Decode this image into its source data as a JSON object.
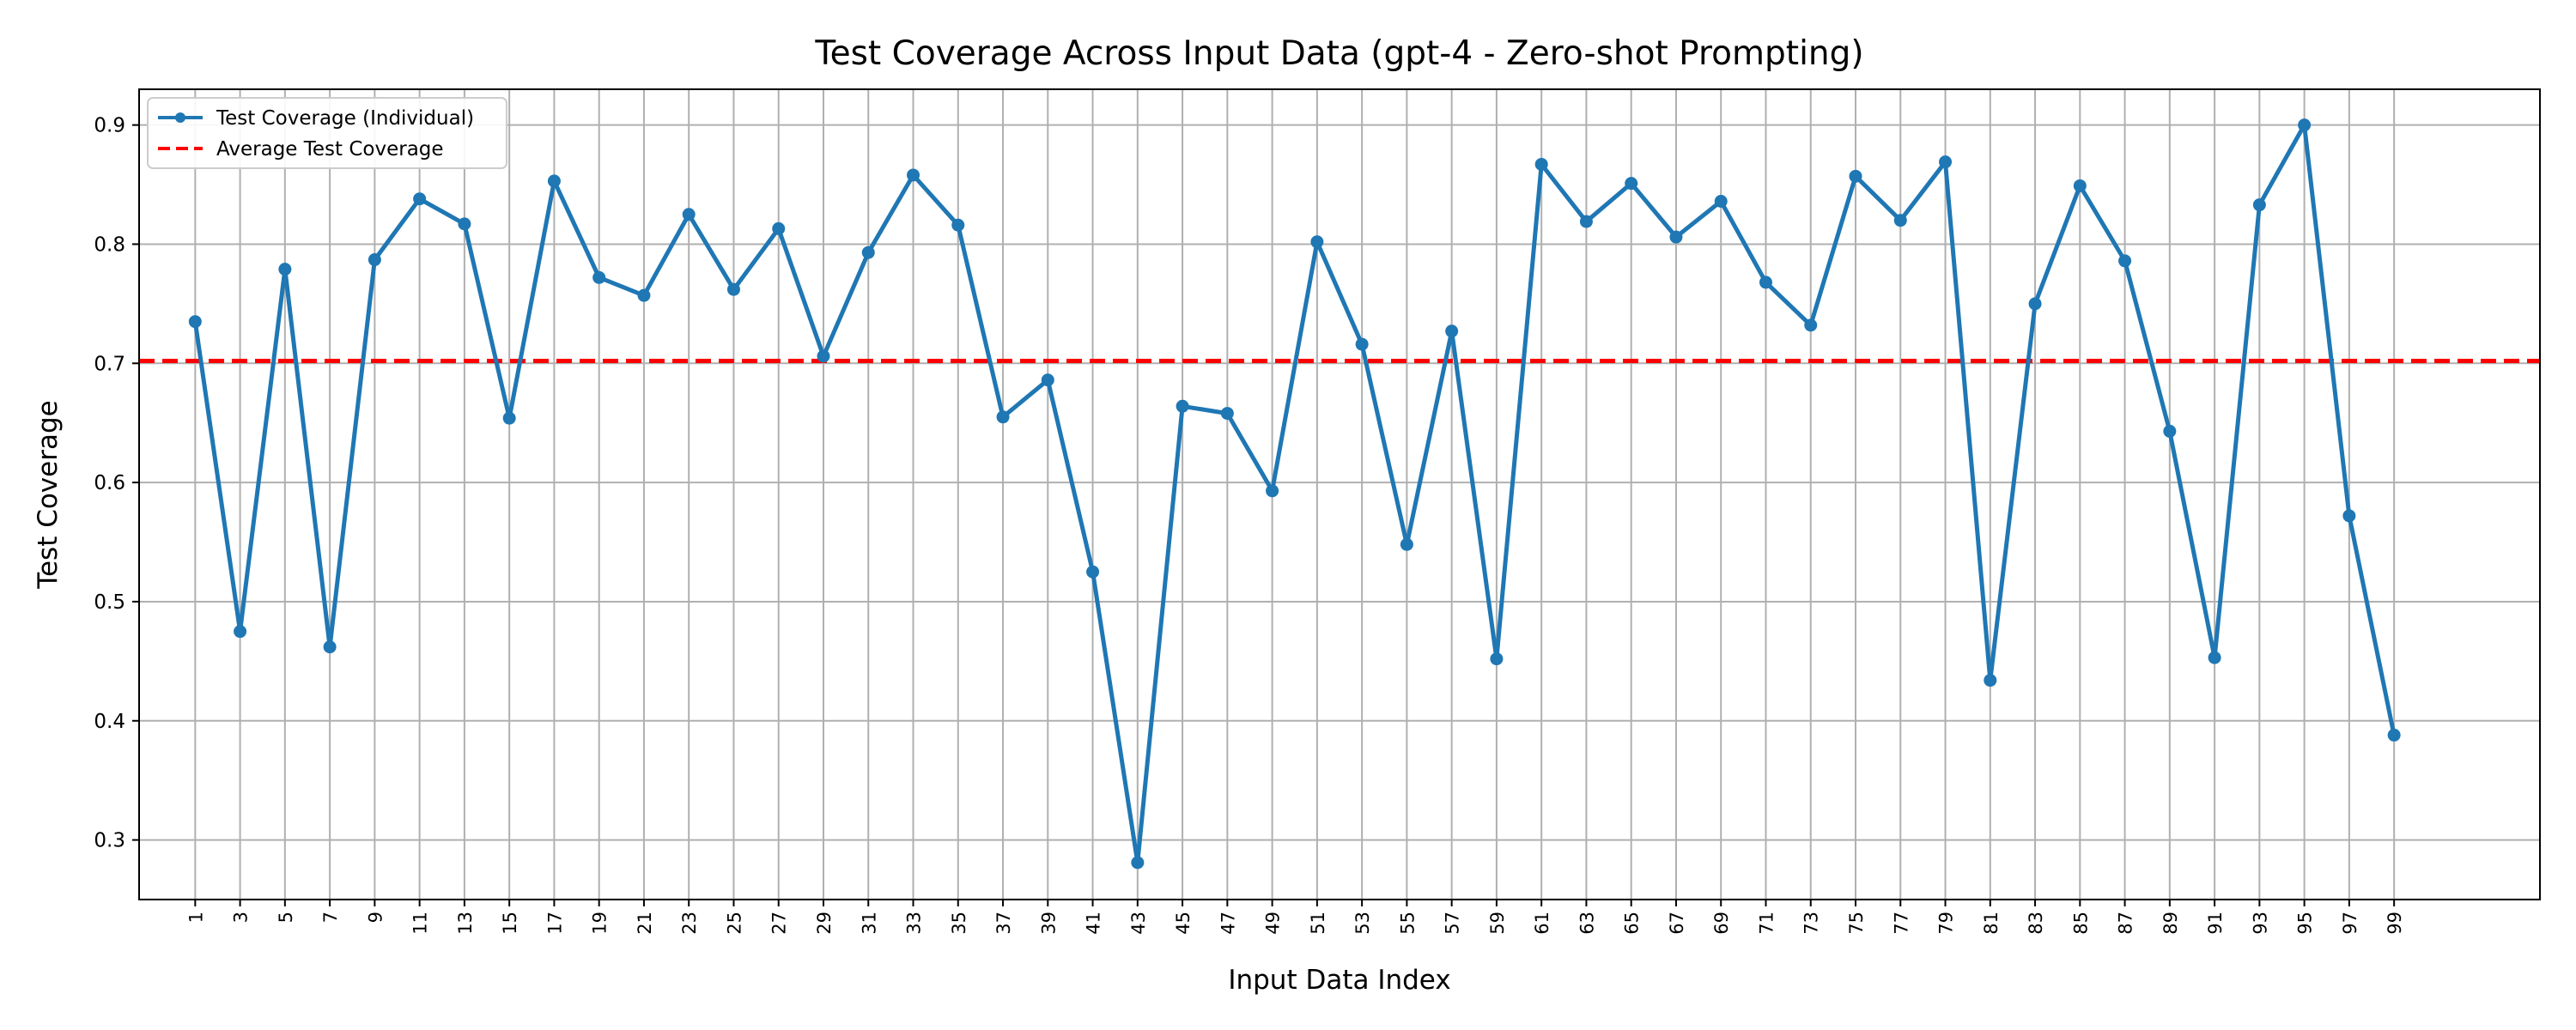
{
  "colors": {
    "series": "#1f77b4",
    "average": "#ff0000",
    "grid": "#b0b0b0",
    "axes": "#000000",
    "legend_border": "#cccccc"
  },
  "chart_data": {
    "type": "line",
    "title": "Test Coverage Across Input Data (gpt-4 - Zero-shot Prompting)",
    "xlabel": "Input Data Index",
    "ylabel": "Test Coverage",
    "xlim": [
      -1.5,
      105.5
    ],
    "ylim": [
      0.25,
      0.93
    ],
    "grid": true,
    "legend_position": "top-left",
    "x_ticks": [
      1,
      3,
      5,
      7,
      9,
      11,
      13,
      15,
      17,
      19,
      21,
      23,
      25,
      27,
      29,
      31,
      33,
      35,
      37,
      39,
      41,
      43,
      45,
      47,
      49,
      51,
      53,
      55,
      57,
      59,
      61,
      63,
      65,
      67,
      69,
      71,
      73,
      75,
      77,
      79,
      81,
      83,
      85,
      87,
      89,
      91,
      93,
      95,
      97,
      99
    ],
    "x_tick_labels": [
      "1",
      "3",
      "5",
      "7",
      "9",
      "11",
      "13",
      "15",
      "17",
      "19",
      "21",
      "23",
      "25",
      "27",
      "29",
      "31",
      "33",
      "35",
      "37",
      "39",
      "41",
      "43",
      "45",
      "47",
      "49",
      "51",
      "53",
      "55",
      "57",
      "59",
      "61",
      "63",
      "65",
      "67",
      "69",
      "71",
      "73",
      "75",
      "77",
      "79",
      "81",
      "83",
      "85",
      "87",
      "89",
      "91",
      "93",
      "95",
      "97",
      "99"
    ],
    "y_ticks": [
      0.3,
      0.4,
      0.5,
      0.6,
      0.7,
      0.8,
      0.9
    ],
    "y_tick_labels": [
      "0.3",
      "0.4",
      "0.5",
      "0.6",
      "0.7",
      "0.8",
      "0.9"
    ],
    "series": [
      {
        "name": "Test Coverage (Individual)",
        "style": "line-with-markers",
        "x": [
          1,
          3,
          5,
          7,
          9,
          11,
          13,
          15,
          17,
          19,
          21,
          23,
          25,
          27,
          29,
          31,
          33,
          35,
          37,
          39,
          41,
          43,
          45,
          47,
          49,
          51,
          53,
          55,
          57,
          59,
          61,
          63,
          65,
          67,
          69,
          71,
          73,
          75,
          77,
          79,
          81,
          83,
          85,
          87,
          89,
          91,
          93,
          95,
          97,
          99
        ],
        "y": [
          0.735,
          0.475,
          0.779,
          0.462,
          0.787,
          0.838,
          0.817,
          0.654,
          0.853,
          0.772,
          0.757,
          0.825,
          0.762,
          0.813,
          0.706,
          0.793,
          0.858,
          0.816,
          0.655,
          0.686,
          0.525,
          0.281,
          0.664,
          0.658,
          0.593,
          0.802,
          0.716,
          0.548,
          0.727,
          0.452,
          0.867,
          0.819,
          0.851,
          0.806,
          0.836,
          0.768,
          0.732,
          0.857,
          0.82,
          0.869,
          0.434,
          0.75,
          0.849,
          0.786,
          0.643,
          0.453,
          0.833,
          0.9,
          0.572,
          0.388
        ]
      },
      {
        "name": "Average Test Coverage",
        "style": "dashed-horizontal",
        "y": 0.702
      }
    ]
  }
}
